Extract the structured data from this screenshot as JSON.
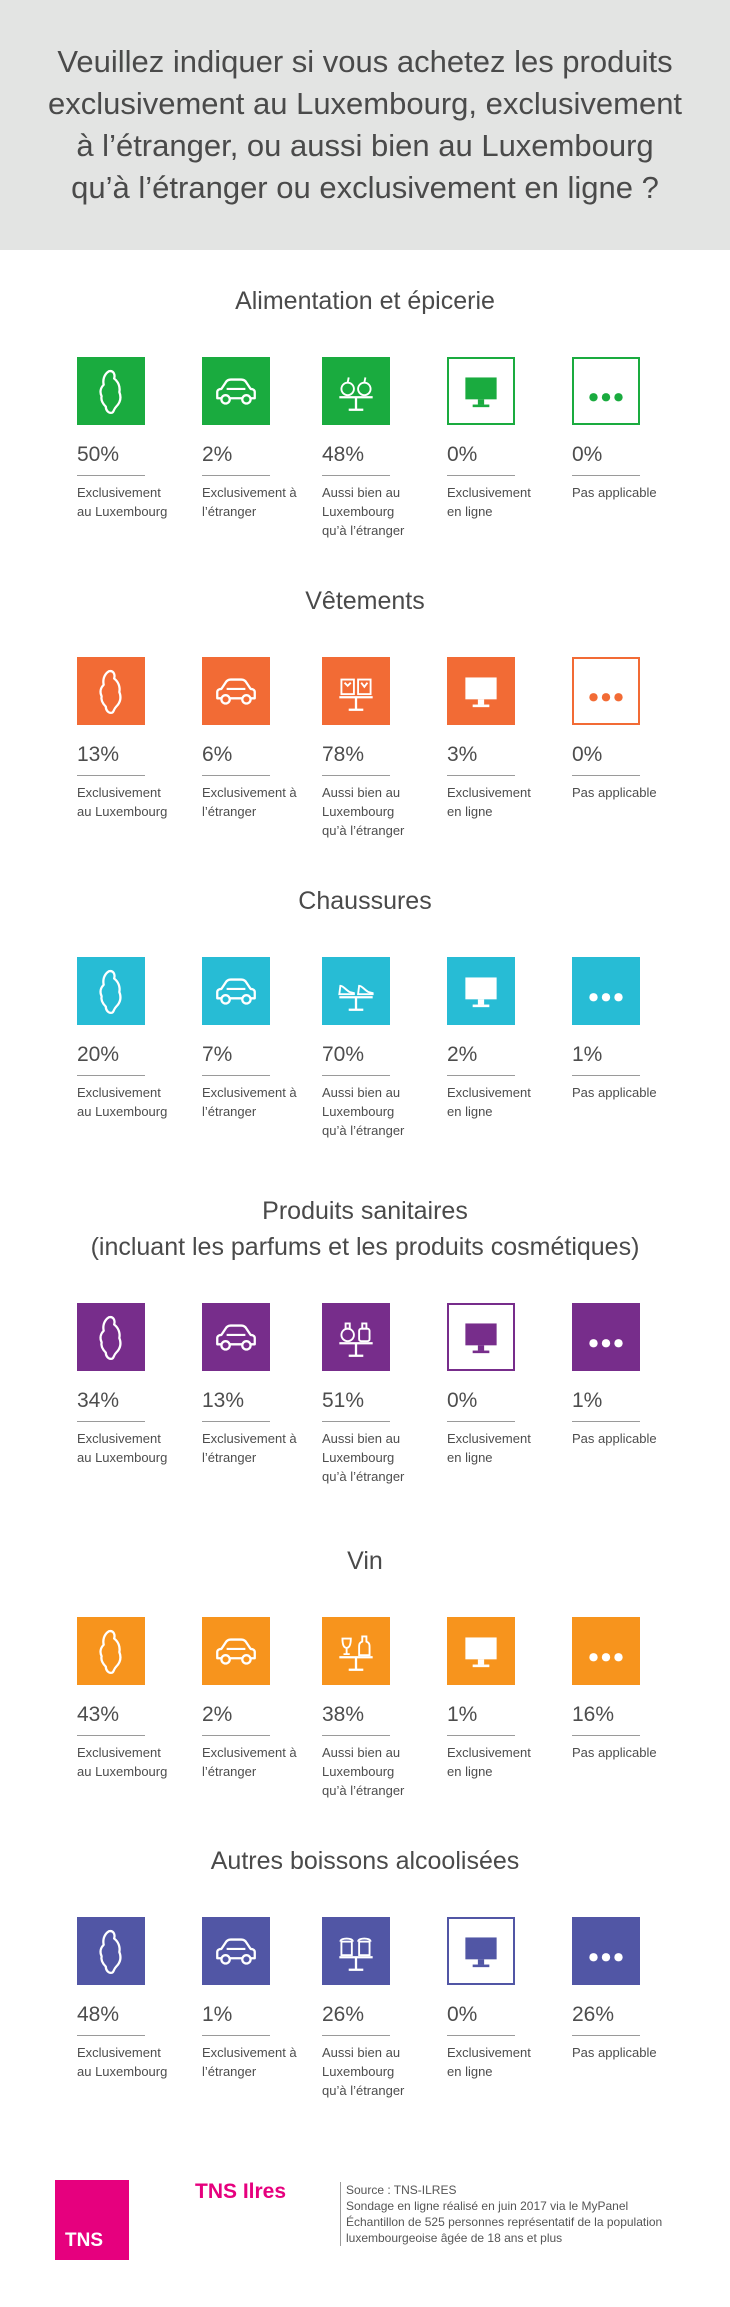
{
  "question": "Veuillez indiquer si vous achetez les produits exclusivement au Luxembourg, exclusivement à l’étranger, ou aussi bien au Luxembourg qu’à l’étranger ou exclusivement en ligne ?",
  "answer_labels": [
    "Exclusivement au Luxembourg",
    "Exclusivement à l’étranger",
    "Aussi bien au Luxembourg qu’à l’étranger",
    "Exclusivement en ligne",
    "Pas applicable"
  ],
  "colors": {
    "green": "#1aab3f",
    "orange_red": "#f26b35",
    "cyan": "#27bcd5",
    "purple": "#772d8b",
    "orange": "#f7941d",
    "indigo": "#5156a5",
    "magenta": "#e6007e"
  },
  "chart_data": {
    "type": "table",
    "columns": [
      "Exclusivement au Luxembourg",
      "Exclusivement à l’étranger",
      "Aussi bien au Luxembourg qu’à l’étranger",
      "Exclusivement en ligne",
      "Pas applicable"
    ],
    "rows": [
      {
        "title": "Alimentation et épicerie",
        "color": "#1aab3f",
        "icon": "apples-on-table-icon",
        "values": [
          "50%",
          "2%",
          "48%",
          "0%",
          "0%"
        ]
      },
      {
        "title": "Vêtements",
        "color": "#f26b35",
        "icon": "clothes-on-table-icon",
        "values": [
          "13%",
          "6%",
          "78%",
          "3%",
          "0%"
        ]
      },
      {
        "title": "Chaussures",
        "color": "#27bcd5",
        "icon": "shoes-on-table-icon",
        "values": [
          "20%",
          "7%",
          "70%",
          "2%",
          "1%"
        ]
      },
      {
        "title": "Produits sanitaires\n(incluant les parfums et les produits cosmétiques)",
        "color": "#772d8b",
        "icon": "perfume-on-table-icon",
        "values": [
          "34%",
          "13%",
          "51%",
          "0%",
          "1%"
        ]
      },
      {
        "title": "Vin",
        "color": "#f7941d",
        "icon": "wine-on-table-icon",
        "values": [
          "43%",
          "2%",
          "38%",
          "1%",
          "16%"
        ]
      },
      {
        "title": "Autres boissons alcoolisées",
        "color": "#5156a5",
        "icon": "beer-on-table-icon",
        "values": [
          "48%",
          "1%",
          "26%",
          "0%",
          "26%"
        ]
      }
    ]
  },
  "footer": {
    "logo_text": "TNS",
    "brand": "TNS Ilres",
    "source_lines": [
      "Source : TNS-ILRES",
      "Sondage en ligne réalisé en juin 2017 via le MyPanel",
      "Échantillon de 525 personnes représentatif de la population",
      "luxembourgeoise âgée de 18 ans et plus"
    ]
  }
}
